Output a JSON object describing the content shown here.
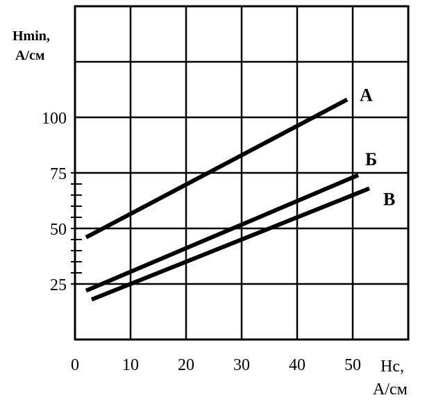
{
  "chart_data": {
    "type": "line",
    "ylabel_line1": "Hmin,",
    "ylabel_line2": "А/см",
    "xlabel_line1": "Hc,",
    "xlabel_line2": "А/см",
    "xlim": [
      0,
      60
    ],
    "ylim": [
      0,
      150
    ],
    "x_ticks": [
      {
        "value": 0,
        "label": "0"
      },
      {
        "value": 10,
        "label": "10"
      },
      {
        "value": 20,
        "label": "20"
      },
      {
        "value": 30,
        "label": "30"
      },
      {
        "value": 40,
        "label": "40"
      },
      {
        "value": 50,
        "label": "50"
      }
    ],
    "y_ticks": [
      {
        "value": 25,
        "label": "25"
      },
      {
        "value": 50,
        "label": "50"
      },
      {
        "value": 75,
        "label": "75"
      },
      {
        "value": 100,
        "label": "100"
      }
    ],
    "grid": true,
    "series": [
      {
        "name": "А",
        "x": [
          2,
          49
        ],
        "y": [
          46,
          108
        ]
      },
      {
        "name": "Б",
        "x": [
          2,
          51
        ],
        "y": [
          22,
          74
        ]
      },
      {
        "name": "В",
        "x": [
          3,
          53
        ],
        "y": [
          18,
          68
        ]
      }
    ]
  }
}
